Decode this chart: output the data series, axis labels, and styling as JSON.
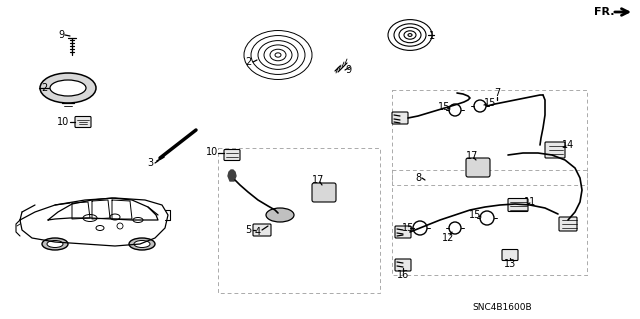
{
  "background": "#ffffff",
  "diagram_code": "SNC4B1600B",
  "fr_text": "FR.",
  "lc": "#000000",
  "gc": "#aaaaaa",
  "fs": 7
}
